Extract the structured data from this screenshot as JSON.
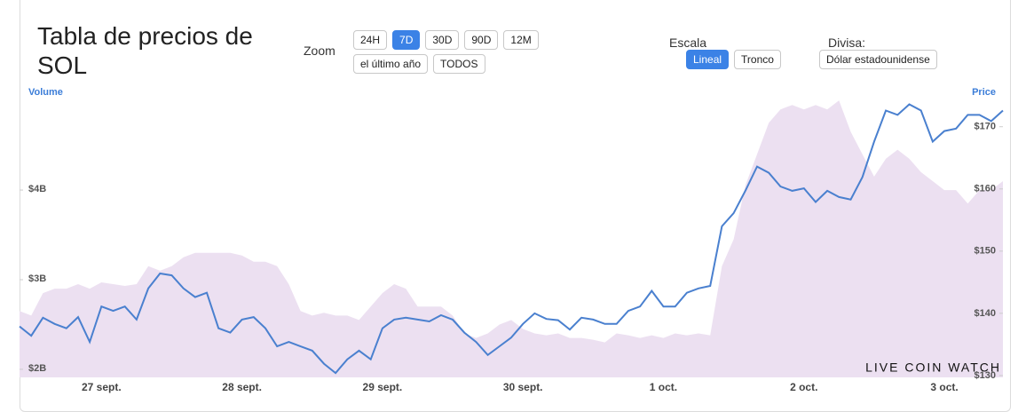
{
  "header": {
    "title": "Tabla de precios de SOL",
    "zoom": {
      "label": "Zoom",
      "buttons": [
        "24H",
        "7D",
        "30D",
        "90D",
        "12M",
        "el último año",
        "TODOS"
      ],
      "active": 1
    },
    "scale": {
      "label": "Escala",
      "buttons": [
        "Lineal",
        "Tronco"
      ],
      "active": 0
    },
    "currency": {
      "label": "Divisa:",
      "button": "Dólar estadounidense"
    }
  },
  "watermark": "LIVE COIN WATCH",
  "chart_data": {
    "type": "line",
    "categories": [
      null,
      null,
      null,
      null,
      null,
      null,
      null,
      "27 sept.",
      null,
      null,
      null,
      null,
      null,
      null,
      null,
      null,
      null,
      null,
      null,
      "28 sept.",
      null,
      null,
      null,
      null,
      null,
      null,
      null,
      null,
      null,
      null,
      null,
      "29 sept.",
      null,
      null,
      null,
      null,
      null,
      null,
      null,
      null,
      null,
      null,
      null,
      "30 sept.",
      null,
      null,
      null,
      null,
      null,
      null,
      null,
      null,
      null,
      null,
      null,
      "1 oct.",
      null,
      null,
      null,
      null,
      null,
      null,
      null,
      null,
      null,
      null,
      null,
      "2 oct.",
      null,
      null,
      null,
      null,
      null,
      null,
      null,
      null,
      null,
      null,
      null,
      "3 oct.",
      null,
      null,
      null,
      null,
      null
    ],
    "series": [
      {
        "name": "Volume",
        "type": "area",
        "color": "#ece0f1",
        "values": [
          2.65,
          2.6,
          2.85,
          2.9,
          2.9,
          2.95,
          2.9,
          2.97,
          2.95,
          2.93,
          2.95,
          3.15,
          3.1,
          3.15,
          3.25,
          3.3,
          3.3,
          3.3,
          3.3,
          3.27,
          3.2,
          3.2,
          3.15,
          2.95,
          2.65,
          2.6,
          2.63,
          2.6,
          2.6,
          2.55,
          2.7,
          2.85,
          2.95,
          2.9,
          2.7,
          2.7,
          2.7,
          2.6,
          2.4,
          2.35,
          2.4,
          2.5,
          2.55,
          2.45,
          2.4,
          2.38,
          2.4,
          2.35,
          2.35,
          2.33,
          2.3,
          2.4,
          2.38,
          2.35,
          2.38,
          2.35,
          2.4,
          2.38,
          2.4,
          2.38,
          3.15,
          3.45,
          4.05,
          4.4,
          4.75,
          4.9,
          4.95,
          4.9,
          4.95,
          4.9,
          5.0,
          4.65,
          4.4,
          4.15,
          4.35,
          4.45,
          4.35,
          4.2,
          4.1,
          4.0,
          4.0,
          3.85,
          4.0,
          4.0,
          4.1
        ]
      },
      {
        "name": "Price",
        "type": "line",
        "axis": "y2",
        "color": "#4a80cf",
        "values": [
          137.9,
          136.4,
          139.3,
          138.3,
          137.6,
          139.4,
          135.4,
          141.1,
          140.4,
          141.1,
          139.0,
          144.0,
          146.4,
          146.1,
          144.0,
          142.6,
          143.3,
          137.6,
          136.9,
          139.0,
          139.4,
          137.6,
          134.7,
          135.4,
          134.7,
          134.0,
          131.9,
          130.4,
          132.6,
          134.0,
          132.6,
          137.6,
          139.0,
          139.3,
          139.0,
          138.7,
          139.7,
          139.0,
          136.9,
          135.4,
          133.3,
          134.7,
          136.1,
          138.3,
          140.0,
          139.1,
          138.9,
          137.4,
          139.3,
          139.0,
          138.3,
          138.3,
          140.4,
          141.1,
          143.6,
          141.1,
          141.1,
          143.3,
          144.0,
          144.4,
          154.0,
          156.1,
          159.7,
          163.6,
          162.6,
          160.4,
          159.7,
          160.1,
          157.9,
          159.7,
          158.7,
          158.3,
          161.9,
          167.6,
          172.6,
          171.9,
          173.6,
          172.6,
          167.6,
          169.3,
          169.7,
          171.9,
          171.9,
          170.9,
          172.6
        ]
      }
    ],
    "ylim": [
      1.91,
      5.13
    ],
    "yticks": [
      {
        "value": 2,
        "label": "$2B"
      },
      {
        "value": 3,
        "label": "$3B"
      },
      {
        "value": 4,
        "label": "$4B"
      }
    ],
    "y2lim": [
      129.7,
      176.1
    ],
    "y2ticks": [
      {
        "value": 130,
        "label": "$130"
      },
      {
        "value": 140,
        "label": "$140"
      },
      {
        "value": 150,
        "label": "$150"
      },
      {
        "value": 160,
        "label": "$160"
      },
      {
        "value": 170,
        "label": "$170"
      }
    ]
  }
}
